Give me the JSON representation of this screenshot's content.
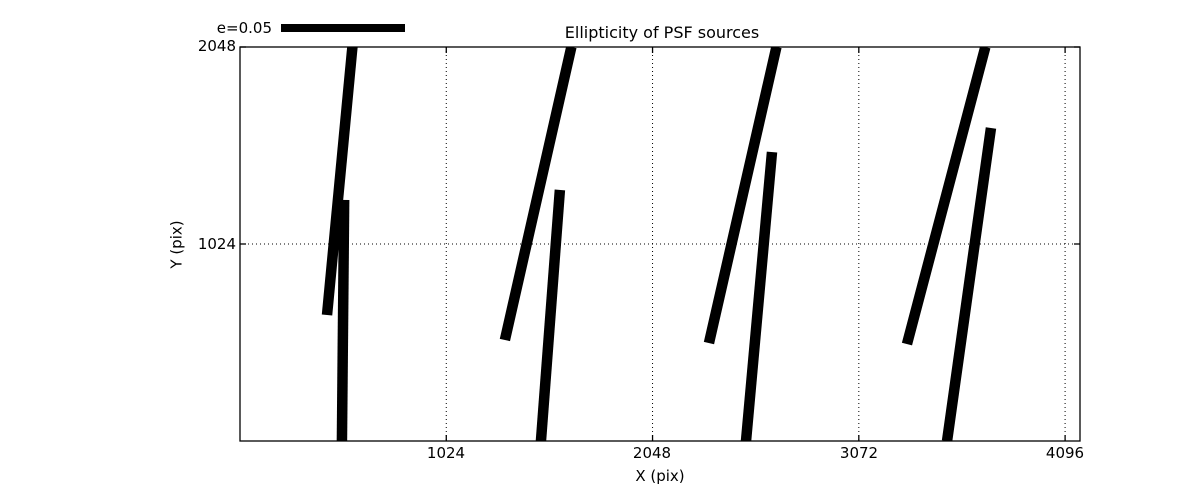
{
  "figure": {
    "background": "#ffffff",
    "foreground": "#000000"
  },
  "legend": {
    "label": "e=0.05",
    "swatch_color": "#000000",
    "position": "top-left"
  },
  "chart_data": {
    "type": "line",
    "subtype": "ellipticity-whisker-plot",
    "title": "Ellipticity of PSF sources",
    "xlabel": "X (pix)",
    "ylabel": "Y (pix)",
    "xlim": [
      0,
      4170
    ],
    "ylim": [
      0,
      2048
    ],
    "xticks": [
      1024,
      2048,
      3072,
      4096
    ],
    "yticks": [
      2048,
      1024
    ],
    "grid": "dotted",
    "grid_color": "#000000",
    "line_color": "#000000",
    "legend_label": "e=0.05",
    "whiskers": [
      {
        "x1": 558,
        "y1": 2048,
        "x2": 432,
        "y2": 655
      },
      {
        "x1": 517,
        "y1": 1253,
        "x2": 506,
        "y2": 0
      },
      {
        "x1": 1645,
        "y1": 2048,
        "x2": 1315,
        "y2": 525
      },
      {
        "x1": 1588,
        "y1": 1305,
        "x2": 1494,
        "y2": 0
      },
      {
        "x1": 2663,
        "y1": 2048,
        "x2": 2328,
        "y2": 509
      },
      {
        "x1": 2641,
        "y1": 1502,
        "x2": 2512,
        "y2": 0
      },
      {
        "x1": 3700,
        "y1": 2048,
        "x2": 3311,
        "y2": 504
      },
      {
        "x1": 3728,
        "y1": 1627,
        "x2": 3510,
        "y2": 0
      }
    ]
  }
}
